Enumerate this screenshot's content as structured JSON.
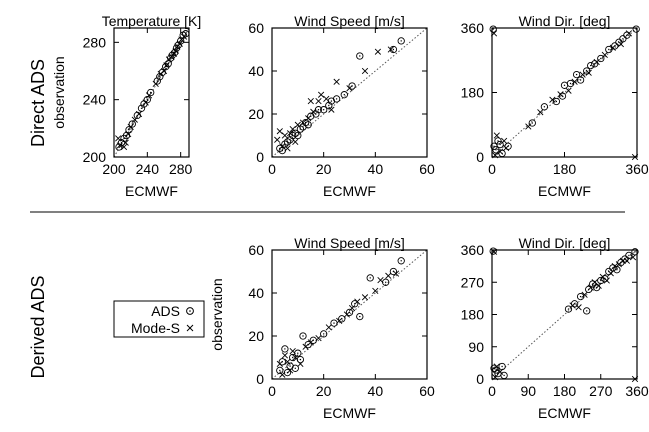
{
  "figure": {
    "row_labels": [
      "Direct ADS",
      "Derived ADS"
    ],
    "legend": {
      "entries": [
        {
          "label": "ADS",
          "marker": "circle-dot"
        },
        {
          "label": "Mode-S",
          "marker": "cross"
        }
      ]
    },
    "colors": {
      "ink": "#000000",
      "diagonal": "#555555"
    }
  },
  "chart_data": [
    {
      "type": "scatter",
      "row": "Direct ADS",
      "title": "Temperature [K]",
      "xlabel": "ECMWF",
      "ylabel": "observation",
      "xlim": [
        200,
        290
      ],
      "ylim": [
        200,
        290
      ],
      "xticks": [
        200,
        240,
        280
      ],
      "yticks": [
        200,
        240,
        280
      ],
      "diagonal": true,
      "series": [
        {
          "name": "ADS",
          "marker": "circle-dot",
          "points": [
            [
              206,
              207
            ],
            [
              209,
              210
            ],
            [
              212,
              213
            ],
            [
              215,
              215
            ],
            [
              218,
              219
            ],
            [
              222,
              223
            ],
            [
              228,
              229
            ],
            [
              233,
              234
            ],
            [
              236,
              237
            ],
            [
              240,
              240
            ],
            [
              244,
              245
            ],
            [
              252,
              253
            ],
            [
              255,
              256
            ],
            [
              258,
              259
            ],
            [
              262,
              263
            ],
            [
              265,
              265
            ],
            [
              268,
              269
            ],
            [
              270,
              271
            ],
            [
              273,
              273
            ],
            [
              275,
              276
            ],
            [
              277,
              278
            ],
            [
              280,
              281
            ],
            [
              283,
              285
            ],
            [
              286,
              286
            ]
          ]
        },
        {
          "name": "Mode-S",
          "marker": "cross",
          "points": [
            [
              205,
              213
            ],
            [
              207,
              208
            ],
            [
              212,
              207
            ],
            [
              214,
              210
            ],
            [
              217,
              216
            ],
            [
              220,
              221
            ],
            [
              225,
              226
            ],
            [
              230,
              230
            ],
            [
              238,
              238
            ],
            [
              242,
              243
            ],
            [
              250,
              251
            ],
            [
              256,
              258
            ],
            [
              260,
              260
            ],
            [
              263,
              264
            ],
            [
              266,
              268
            ],
            [
              269,
              270
            ],
            [
              272,
              272
            ],
            [
              274,
              274
            ],
            [
              276,
              277
            ],
            [
              279,
              279
            ],
            [
              281,
              282
            ],
            [
              284,
              284
            ]
          ]
        }
      ]
    },
    {
      "type": "scatter",
      "row": "Direct ADS",
      "title": "Wind Speed [m/s]",
      "xlabel": "ECMWF",
      "ylabel": "",
      "xlim": [
        0,
        60
      ],
      "ylim": [
        0,
        60
      ],
      "xticks": [
        0,
        20,
        40,
        60
      ],
      "yticks": [
        0,
        20,
        40,
        60
      ],
      "diagonal": true,
      "series": [
        {
          "name": "ADS",
          "marker": "circle-dot",
          "points": [
            [
              3,
              4
            ],
            [
              4,
              3
            ],
            [
              5,
              6
            ],
            [
              6,
              7
            ],
            [
              7,
              8
            ],
            [
              8,
              10
            ],
            [
              9,
              11
            ],
            [
              10,
              10
            ],
            [
              11,
              13
            ],
            [
              12,
              14
            ],
            [
              13,
              16
            ],
            [
              14,
              15
            ],
            [
              15,
              19
            ],
            [
              17,
              20
            ],
            [
              18,
              22
            ],
            [
              20,
              22
            ],
            [
              22,
              24
            ],
            [
              23,
              26
            ],
            [
              25,
              27
            ],
            [
              28,
              29
            ],
            [
              31,
              33
            ],
            [
              34,
              47
            ],
            [
              47,
              50
            ],
            [
              50,
              54
            ]
          ]
        },
        {
          "name": "Mode-S",
          "marker": "cross",
          "points": [
            [
              2,
              8
            ],
            [
              3,
              12
            ],
            [
              4,
              5
            ],
            [
              5,
              10
            ],
            [
              6,
              4
            ],
            [
              7,
              11
            ],
            [
              8,
              13
            ],
            [
              9,
              7
            ],
            [
              10,
              15
            ],
            [
              12,
              16
            ],
            [
              14,
              18
            ],
            [
              15,
              26
            ],
            [
              16,
              21
            ],
            [
              18,
              26
            ],
            [
              19,
              29
            ],
            [
              21,
              27
            ],
            [
              23,
              22
            ],
            [
              25,
              35
            ],
            [
              30,
              32
            ],
            [
              36,
              40
            ],
            [
              41,
              49
            ],
            [
              46,
              50
            ]
          ]
        }
      ]
    },
    {
      "type": "scatter",
      "row": "Direct ADS",
      "title": "Wind Dir. [deg]",
      "xlabel": "ECMWF",
      "ylabel": "",
      "xlim": [
        0,
        360
      ],
      "ylim": [
        0,
        360
      ],
      "xticks": [
        0,
        180,
        360
      ],
      "yticks": [
        0,
        180,
        360
      ],
      "diagonal": true,
      "series": [
        {
          "name": "ADS",
          "marker": "circle-dot",
          "points": [
            [
              3,
              357
            ],
            [
              5,
              30
            ],
            [
              10,
              20
            ],
            [
              15,
              45
            ],
            [
              20,
              35
            ],
            [
              25,
              10
            ],
            [
              40,
              30
            ],
            [
              100,
              95
            ],
            [
              130,
              140
            ],
            [
              160,
              155
            ],
            [
              175,
              170
            ],
            [
              180,
              200
            ],
            [
              195,
              205
            ],
            [
              210,
              230
            ],
            [
              220,
              215
            ],
            [
              235,
              240
            ],
            [
              245,
              255
            ],
            [
              255,
              260
            ],
            [
              270,
              275
            ],
            [
              290,
              300
            ],
            [
              305,
              310
            ],
            [
              315,
              320
            ],
            [
              325,
              330
            ],
            [
              335,
              340
            ],
            [
              358,
              357
            ]
          ]
        },
        {
          "name": "Mode-S",
          "marker": "cross",
          "points": [
            [
              5,
              345
            ],
            [
              8,
              5
            ],
            [
              12,
              60
            ],
            [
              20,
              15
            ],
            [
              30,
              45
            ],
            [
              35,
              25
            ],
            [
              90,
              85
            ],
            [
              120,
              125
            ],
            [
              150,
              160
            ],
            [
              170,
              175
            ],
            [
              190,
              185
            ],
            [
              205,
              210
            ],
            [
              225,
              230
            ],
            [
              240,
              235
            ],
            [
              260,
              265
            ],
            [
              280,
              285
            ],
            [
              300,
              305
            ],
            [
              320,
              315
            ],
            [
              340,
              345
            ],
            [
              355,
              0
            ]
          ]
        }
      ]
    },
    {
      "type": "scatter",
      "row": "Derived ADS",
      "title": "Wind Speed [m/s]",
      "xlabel": "ECMWF",
      "ylabel": "observation",
      "xlim": [
        0,
        60
      ],
      "ylim": [
        0,
        60
      ],
      "xticks": [
        0,
        20,
        40,
        60
      ],
      "yticks": [
        0,
        20,
        40,
        60
      ],
      "diagonal": true,
      "series": [
        {
          "name": "ADS",
          "marker": "circle-dot",
          "points": [
            [
              3,
              4
            ],
            [
              4,
              8
            ],
            [
              5,
              14
            ],
            [
              6,
              3
            ],
            [
              7,
              6
            ],
            [
              8,
              10
            ],
            [
              9,
              5
            ],
            [
              10,
              12
            ],
            [
              11,
              9
            ],
            [
              12,
              20
            ],
            [
              14,
              16
            ],
            [
              16,
              18
            ],
            [
              20,
              21
            ],
            [
              24,
              26
            ],
            [
              27,
              28
            ],
            [
              30,
              31
            ],
            [
              32,
              35
            ],
            [
              34,
              29
            ],
            [
              38,
              47
            ],
            [
              44,
              45
            ],
            [
              47,
              50
            ],
            [
              50,
              55
            ]
          ]
        },
        {
          "name": "Mode-S",
          "marker": "cross",
          "points": [
            [
              3,
              7
            ],
            [
              4,
              2
            ],
            [
              5,
              11
            ],
            [
              6,
              8
            ],
            [
              7,
              4
            ],
            [
              8,
              13
            ],
            [
              9,
              10
            ],
            [
              11,
              7
            ],
            [
              13,
              15
            ],
            [
              15,
              17
            ],
            [
              18,
              19
            ],
            [
              22,
              24
            ],
            [
              26,
              27
            ],
            [
              29,
              30
            ],
            [
              31,
              33
            ],
            [
              33,
              36
            ],
            [
              36,
              38
            ],
            [
              40,
              41
            ],
            [
              42,
              46
            ],
            [
              45,
              48
            ],
            [
              48,
              49
            ]
          ]
        }
      ]
    },
    {
      "type": "scatter",
      "row": "Derived ADS",
      "title": "Wind Dir. [deg]",
      "xlabel": "ECMWF",
      "ylabel": "",
      "xlim": [
        0,
        360
      ],
      "ylim": [
        0,
        360
      ],
      "xticks": [
        0,
        90,
        180,
        270,
        360
      ],
      "xtick_labels": [
        "0",
        "90",
        "180",
        "270",
        "360"
      ],
      "yticks": [
        0,
        90,
        180,
        270,
        360
      ],
      "diagonal": true,
      "series": [
        {
          "name": "ADS",
          "marker": "circle-dot",
          "points": [
            [
              3,
              357
            ],
            [
              5,
              30
            ],
            [
              10,
              25
            ],
            [
              15,
              15
            ],
            [
              25,
              35
            ],
            [
              30,
              10
            ],
            [
              190,
              195
            ],
            [
              205,
              210
            ],
            [
              220,
              230
            ],
            [
              235,
              190
            ],
            [
              240,
              250
            ],
            [
              250,
              265
            ],
            [
              260,
              255
            ],
            [
              270,
              275
            ],
            [
              280,
              280
            ],
            [
              290,
              300
            ],
            [
              300,
              310
            ],
            [
              310,
              305
            ],
            [
              320,
              325
            ],
            [
              330,
              335
            ],
            [
              340,
              345
            ],
            [
              355,
              355
            ]
          ]
        },
        {
          "name": "Mode-S",
          "marker": "cross",
          "points": [
            [
              5,
              355
            ],
            [
              8,
              5
            ],
            [
              12,
              35
            ],
            [
              20,
              20
            ],
            [
              200,
              205
            ],
            [
              215,
              200
            ],
            [
              230,
              235
            ],
            [
              245,
              255
            ],
            [
              255,
              270
            ],
            [
              265,
              260
            ],
            [
              275,
              285
            ],
            [
              285,
              275
            ],
            [
              295,
              295
            ],
            [
              305,
              315
            ],
            [
              315,
              320
            ],
            [
              325,
              330
            ],
            [
              335,
              330
            ],
            [
              350,
              340
            ],
            [
              355,
              0
            ]
          ]
        }
      ]
    }
  ]
}
